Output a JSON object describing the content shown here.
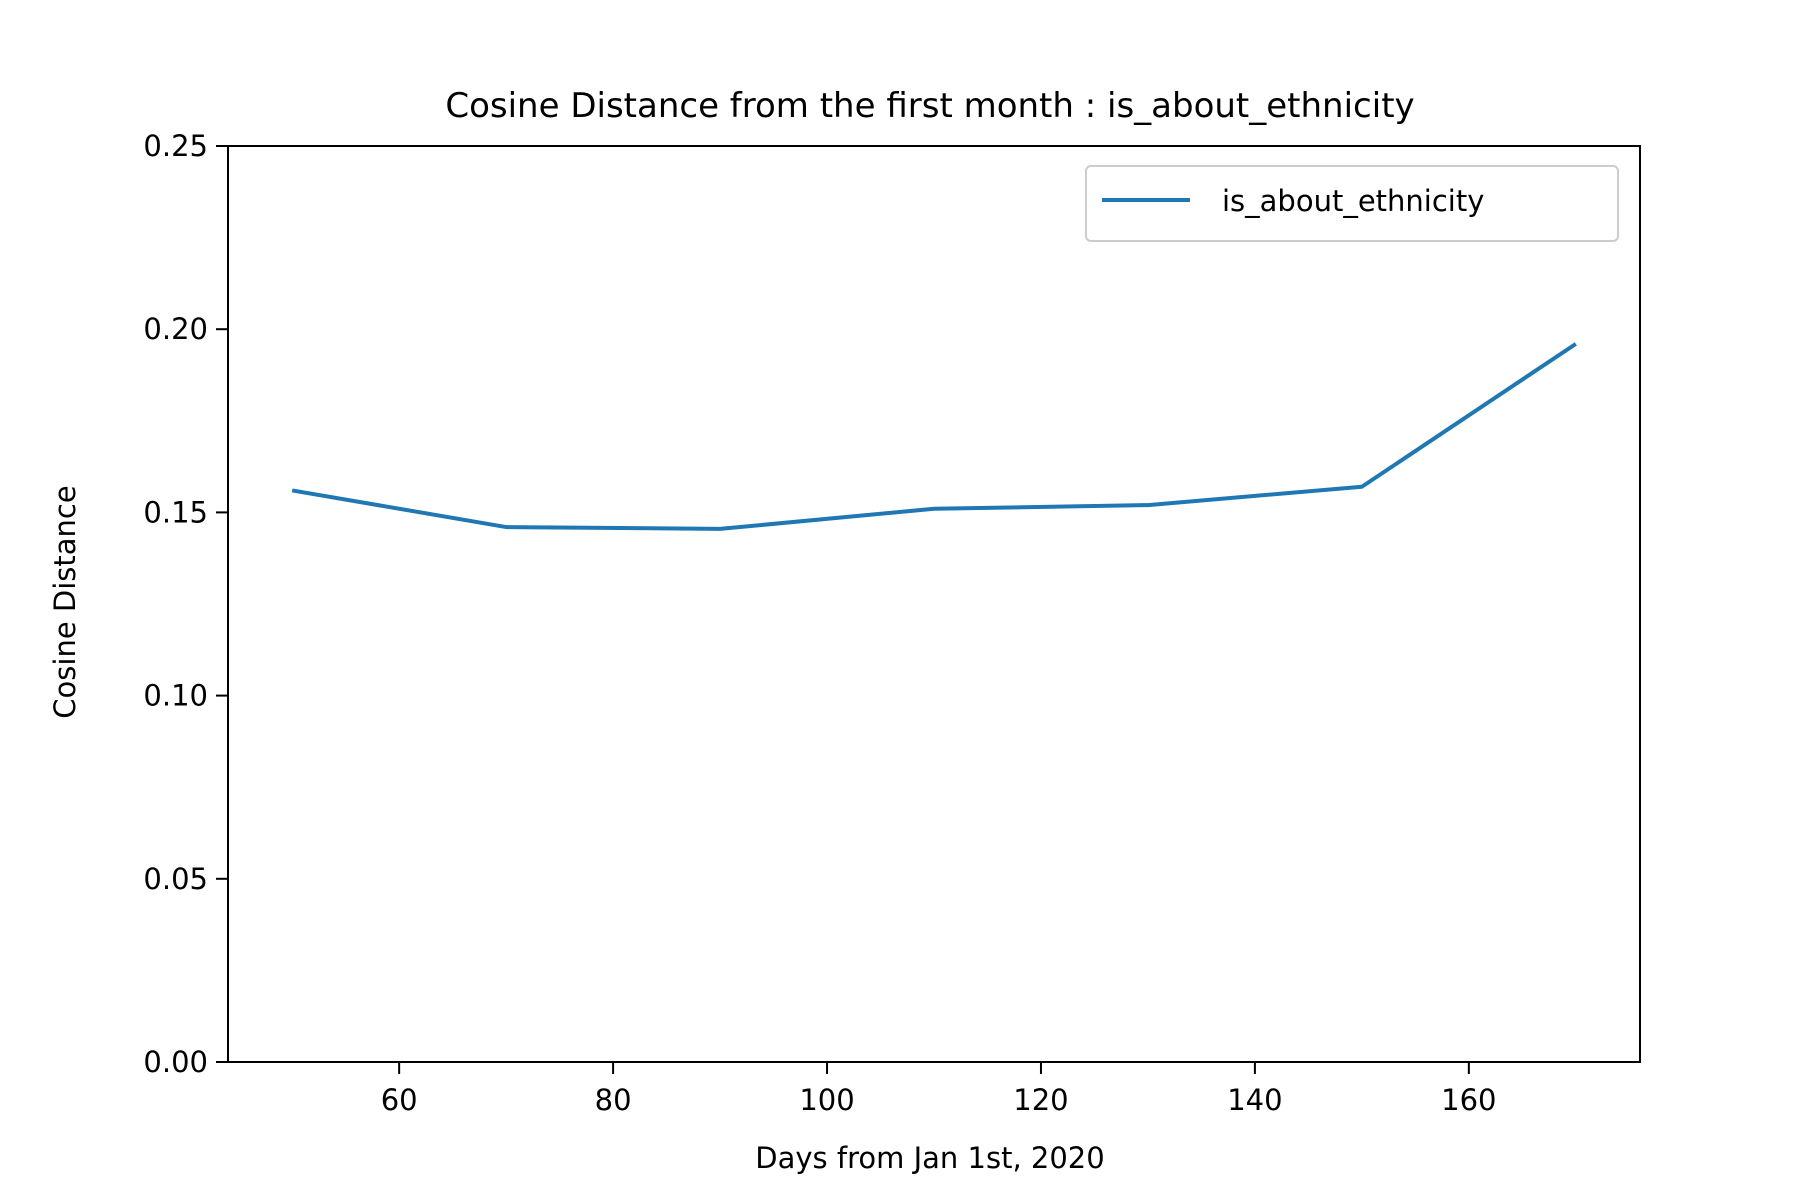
{
  "chart_data": {
    "type": "line",
    "title": "Cosine Distance from the first month : is_about_ethnicity",
    "xlabel": "Days from Jan 1st, 2020",
    "ylabel": "Cosine Distance",
    "xlim": [
      44,
      176
    ],
    "ylim": [
      0,
      0.25
    ],
    "xticks": [
      60,
      80,
      100,
      120,
      140,
      160
    ],
    "xtick_labels": [
      "60",
      "80",
      "100",
      "120",
      "140",
      "160"
    ],
    "yticks": [
      0,
      0.05,
      0.1,
      0.15,
      0.2,
      0.25
    ],
    "ytick_labels": [
      "0.00",
      "0.05",
      "0.10",
      "0.15",
      "0.20",
      "0.25"
    ],
    "grid": false,
    "legend_position": "top-right",
    "series": [
      {
        "name": "is_about_ethnicity",
        "color": "#1f77b4",
        "x": [
          50,
          70,
          90,
          110,
          130,
          150,
          170
        ],
        "y": [
          0.156,
          0.146,
          0.1455,
          0.151,
          0.152,
          0.157,
          0.196
        ]
      }
    ]
  }
}
